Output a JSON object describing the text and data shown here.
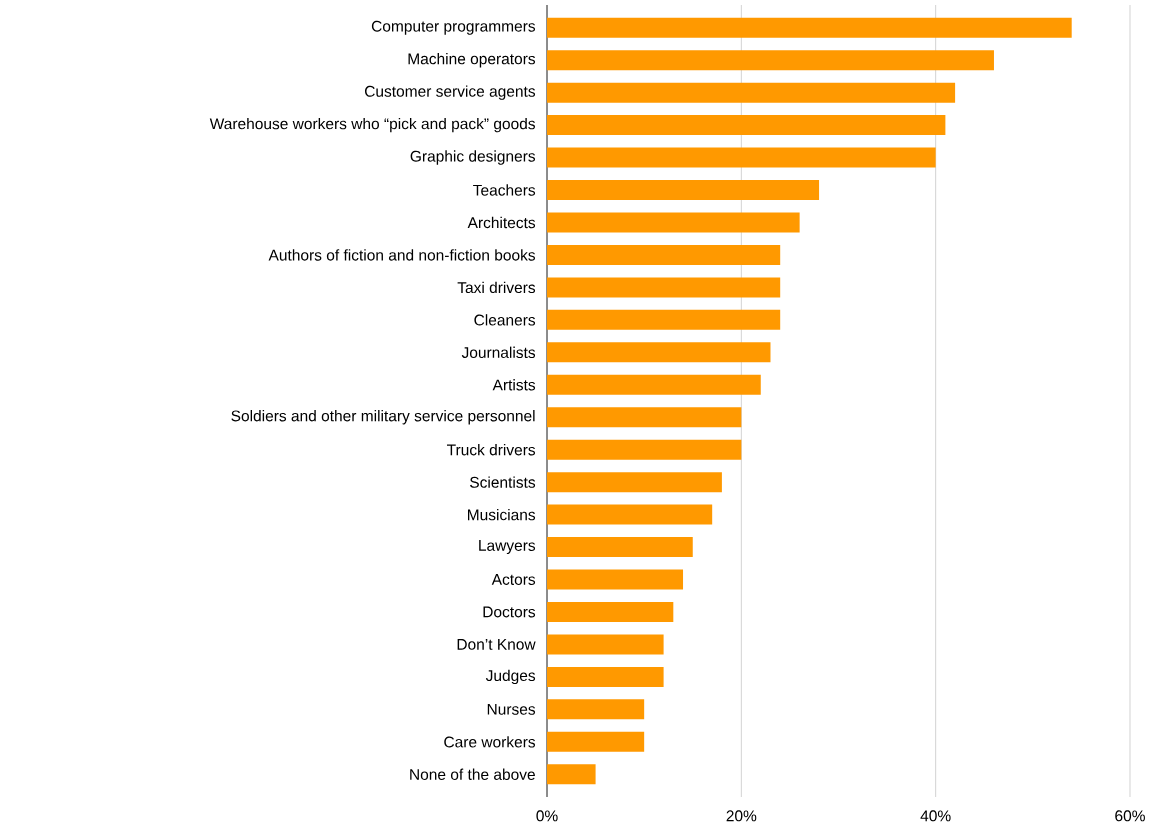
{
  "chart_data": {
    "type": "bar",
    "orientation": "horizontal",
    "categories": [
      "Computer programmers",
      "Machine operators",
      "Customer service agents",
      "Warehouse workers who “pick and pack” goods",
      "Graphic designers",
      "Teachers",
      "Architects",
      "Authors of fiction and non-fiction books",
      "Taxi drivers",
      "Cleaners",
      "Journalists",
      "Artists",
      "Soldiers and other military service personnel",
      "Truck drivers",
      "Scientists",
      "Musicians",
      "Lawyers",
      "Actors",
      "Doctors",
      "Don’t Know",
      "Judges",
      "Nurses",
      "Care workers",
      "None of the above"
    ],
    "values": [
      54,
      46,
      42,
      41,
      40,
      28,
      26,
      24,
      24,
      24,
      23,
      22,
      20,
      20,
      18,
      17,
      15,
      14,
      13,
      12,
      12,
      10,
      10,
      5
    ],
    "color": "#ff9900",
    "xlim": [
      0,
      60
    ],
    "xticks": [
      {
        "value": 0,
        "label": "0%"
      },
      {
        "value": 20,
        "label": "20%"
      },
      {
        "value": 40,
        "label": "40%"
      },
      {
        "value": 60,
        "label": "60%"
      }
    ],
    "grid": "x"
  }
}
